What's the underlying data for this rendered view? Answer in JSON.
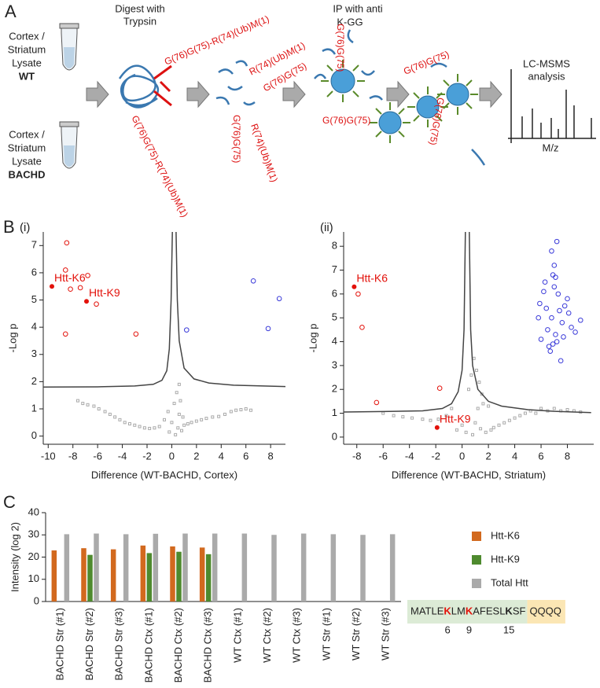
{
  "panel_a": {
    "label": "A",
    "tubes": [
      {
        "lines": [
          "Cortex /",
          "Striatum",
          "Lysate"
        ],
        "genotype": "WT"
      },
      {
        "lines": [
          "Cortex /",
          "Striatum",
          "Lysate"
        ],
        "genotype": "BACHD"
      }
    ],
    "digest": [
      "Digest with",
      "Trypsin"
    ],
    "ip": [
      "IP with anti",
      "K-GG"
    ],
    "analysis": [
      "LC-MSMS",
      "analysis"
    ],
    "spectrum_axis": "M/z",
    "peptides": [
      "G(76)G(75)-R(74)(Ub)M(1)",
      "G(76)G(75)-R(74)(Ub)M(1)",
      "R(74)(Ub)M(1)",
      "G(76)G(75)",
      "G(76)G(75)",
      "R(74)(Ub)M(1)",
      "G(76)G(75)",
      "G(76)G(75)",
      "G(76)G(75)",
      "G(76)G(75)"
    ]
  },
  "panel_b": {
    "label": "B"
  },
  "panel_c": {
    "label": "C",
    "sequence": {
      "segments": [
        {
          "text": "MATLE",
          "style": "plain"
        },
        {
          "text": "K",
          "style": "red"
        },
        {
          "text": "LM",
          "style": "plain"
        },
        {
          "text": "K",
          "style": "red"
        },
        {
          "text": "AFESL",
          "style": "plain"
        },
        {
          "text": "K",
          "style": "bold"
        },
        {
          "text": "SF",
          "style": "plain"
        }
      ],
      "tail": "QQQQ",
      "positions": [
        6,
        9,
        15
      ]
    }
  },
  "chart_data": [
    {
      "type": "scatter",
      "subtitle": "(i)",
      "xlabel": "Difference (WT-BACHD, Cortex)",
      "ylabel": "-Log p",
      "xlim": [
        -10.4,
        9.2
      ],
      "ylim": [
        -0.3,
        7.5
      ],
      "xticks": [
        -10,
        -8,
        -6,
        -4,
        -2,
        0,
        2,
        4,
        6,
        8
      ],
      "yticks": [
        0,
        1,
        2,
        3,
        4,
        5,
        6,
        7
      ],
      "series": [
        {
          "color": "#aaaaaa",
          "marker": "square-open",
          "x": [
            -7.6,
            -7.2,
            -6.8,
            -6.3,
            -5.9,
            -5.4,
            -5.0,
            -4.6,
            -4.2,
            -3.8,
            -3.4,
            -3.0,
            -2.6,
            -2.2,
            -1.8,
            -1.4,
            -1.0,
            -0.6,
            -0.3,
            0.0,
            0.2,
            0.4,
            0.5,
            0.6,
            0.7,
            0.8,
            1.0,
            1.3,
            1.6,
            2.0,
            2.4,
            2.8,
            3.3,
            3.8,
            4.3,
            4.8,
            5.2,
            5.6,
            6.0,
            6.4,
            -0.2,
            0.3,
            0.6,
            0.9
          ],
          "values": [
            1.3,
            1.2,
            1.15,
            1.1,
            1.0,
            0.9,
            0.8,
            0.7,
            0.6,
            0.5,
            0.45,
            0.4,
            0.35,
            0.3,
            0.28,
            0.3,
            0.35,
            0.6,
            0.9,
            0.5,
            1.2,
            1.6,
            0.3,
            0.8,
            1.3,
            0.2,
            0.4,
            0.45,
            0.5,
            0.55,
            0.6,
            0.65,
            0.7,
            0.72,
            0.8,
            0.9,
            0.95,
            0.97,
            1.0,
            0.95,
            0.15,
            0.05,
            1.9,
            0.7
          ]
        },
        {
          "color": "#444444",
          "line": true,
          "x": [
            -10.4,
            -6,
            -3,
            -1.5,
            -0.8,
            -0.4,
            -0.2,
            -0.05,
            0.05,
            null,
            0.35,
            0.45,
            0.6,
            1.0,
            1.8,
            3,
            5,
            9.2
          ],
          "values": [
            1.8,
            1.81,
            1.84,
            1.9,
            2.05,
            2.4,
            3.2,
            5,
            7.5,
            null,
            7.5,
            5,
            3.5,
            2.5,
            2.1,
            1.95,
            1.87,
            1.82
          ]
        },
        {
          "color": "#e3120b",
          "marker": "circle-open",
          "x": [
            -8.5,
            -8.6,
            -6.8,
            -8.2,
            -7.4,
            -6.1,
            -8.6,
            -2.9
          ],
          "values": [
            7.1,
            6.1,
            5.9,
            5.4,
            5.45,
            4.85,
            3.75,
            3.75
          ]
        },
        {
          "color": "#3b3bd9",
          "marker": "circle-open",
          "x": [
            6.6,
            8.7,
            1.2,
            7.8
          ],
          "values": [
            5.7,
            5.05,
            3.9,
            3.95
          ]
        },
        {
          "color": "#e3120b",
          "marker": "circle",
          "x": [
            -9.7,
            -6.9
          ],
          "values": [
            5.5,
            4.95
          ],
          "labels": [
            "Htt-K6",
            "Htt-K9"
          ]
        }
      ]
    },
    {
      "type": "scatter",
      "subtitle": "(ii)",
      "xlabel": "Difference (WT-BACHD, Striatum)",
      "ylabel": "-Log p",
      "xlim": [
        -9,
        10
      ],
      "ylim": [
        -0.3,
        8.6
      ],
      "xticks": [
        -8,
        -6,
        -4,
        -2,
        0,
        2,
        4,
        6,
        8
      ],
      "yticks": [
        0,
        1,
        2,
        3,
        4,
        5,
        6,
        7,
        8
      ],
      "series": [
        {
          "color": "#aaaaaa",
          "marker": "square-open",
          "x": [
            -6.0,
            -5.2,
            -4.5,
            -3.8,
            -3.0,
            -2.4,
            -1.8,
            -1.2,
            -0.8,
            -0.4,
            0.0,
            0.3,
            0.5,
            0.7,
            0.9,
            1.1,
            1.3,
            1.5,
            0.8,
            1.0,
            1.2,
            1.6,
            2.0,
            2.4,
            2.8,
            3.2,
            3.6,
            4.0,
            4.4,
            4.8,
            5.2,
            5.6,
            6.0,
            6.5,
            7.0,
            7.5,
            8.0,
            8.5,
            9.0,
            1.4,
            1.8,
            2.2
          ],
          "values": [
            1.0,
            0.9,
            0.85,
            0.8,
            0.75,
            0.7,
            0.75,
            0.9,
            1.2,
            0.3,
            0.5,
            0.2,
            2.0,
            2.6,
            3.3,
            2.8,
            2.3,
            1.8,
            0.1,
            0.6,
            1.2,
            1.4,
            1.3,
            0.4,
            0.5,
            0.6,
            0.7,
            0.8,
            0.9,
            1.0,
            1.1,
            1.0,
            1.2,
            1.1,
            1.2,
            1.1,
            1.15,
            1.1,
            1.05,
            0.35,
            0.2,
            0.3
          ]
        },
        {
          "color": "#444444",
          "line": true,
          "x": [
            -9,
            -6,
            -3,
            -1.5,
            -0.8,
            -0.3,
            0,
            0.15,
            0.25,
            null,
            0.55,
            0.65,
            0.8,
            1.2,
            2,
            3,
            5,
            7,
            9.8
          ],
          "values": [
            1.05,
            1.07,
            1.1,
            1.2,
            1.4,
            1.9,
            2.8,
            4.5,
            8.6,
            null,
            8.6,
            4.5,
            3.0,
            2.0,
            1.5,
            1.3,
            1.15,
            1.08,
            1.03
          ]
        },
        {
          "color": "#e3120b",
          "marker": "circle-open",
          "x": [
            -7.9,
            -7.6,
            -6.5,
            -1.7
          ],
          "values": [
            6.0,
            4.6,
            1.45,
            2.05
          ]
        },
        {
          "color": "#3b3bd9",
          "marker": "circle-open",
          "x": [
            5.9,
            6.2,
            6.5,
            6.8,
            7.1,
            7.4,
            7.7,
            8.0,
            8.3,
            8.6,
            9.0,
            6.0,
            6.4,
            6.9,
            7.2,
            7.6,
            8.1,
            6.3,
            6.7,
            7.0,
            7.3,
            7.8,
            6.6,
            7.1,
            5.8,
            7.5,
            6.8,
            7.2,
            6.9,
            7.0
          ],
          "values": [
            5.6,
            6.1,
            4.5,
            5.0,
            6.7,
            5.3,
            4.2,
            5.8,
            4.6,
            4.4,
            4.9,
            4.1,
            5.4,
            3.9,
            4.0,
            4.8,
            5.2,
            6.5,
            3.6,
            7.2,
            6.0,
            5.5,
            3.8,
            4.3,
            5.0,
            3.2,
            7.8,
            8.2,
            6.8,
            6.3
          ]
        },
        {
          "color": "#e3120b",
          "marker": "circle",
          "x": [
            -8.2,
            -1.9
          ],
          "values": [
            6.3,
            0.4
          ],
          "labels": [
            "Htt-K6",
            "Htt-K9"
          ]
        }
      ]
    },
    {
      "type": "bar",
      "ylabel": "Intensity (log 2)",
      "ylim": [
        0,
        40
      ],
      "yticks": [
        0,
        10,
        20,
        30,
        40
      ],
      "legend": "right",
      "categories": [
        "BACHD Str (#1)",
        "BACHD Str (#2)",
        "BACHD Str (#3)",
        "BACHD Ctx (#1)",
        "BACHD Ctx (#2)",
        "BACHD Ctx (#3)",
        "WT Ctx (#1)",
        "WT Ctx (#2)",
        "WT Ctx (#3)",
        "WT Str (#1)",
        "WT Str (#2)",
        "WT Str (#3)"
      ],
      "series": [
        {
          "name": "Htt-K6",
          "color": "#d2691e",
          "values": [
            23,
            24,
            23.5,
            25.2,
            24.8,
            24.3,
            null,
            null,
            null,
            null,
            null,
            null
          ]
        },
        {
          "name": "Htt-K9",
          "color": "#4e8a2e",
          "values": [
            null,
            21,
            null,
            21.8,
            22.4,
            21.3,
            null,
            null,
            null,
            null,
            null,
            null
          ]
        },
        {
          "name": "Total Htt",
          "color": "#aaaaaa",
          "values": [
            30.3,
            30.6,
            30.3,
            30.5,
            30.6,
            30.6,
            30.6,
            30,
            30.6,
            30.3,
            30,
            30.3
          ]
        }
      ]
    }
  ]
}
